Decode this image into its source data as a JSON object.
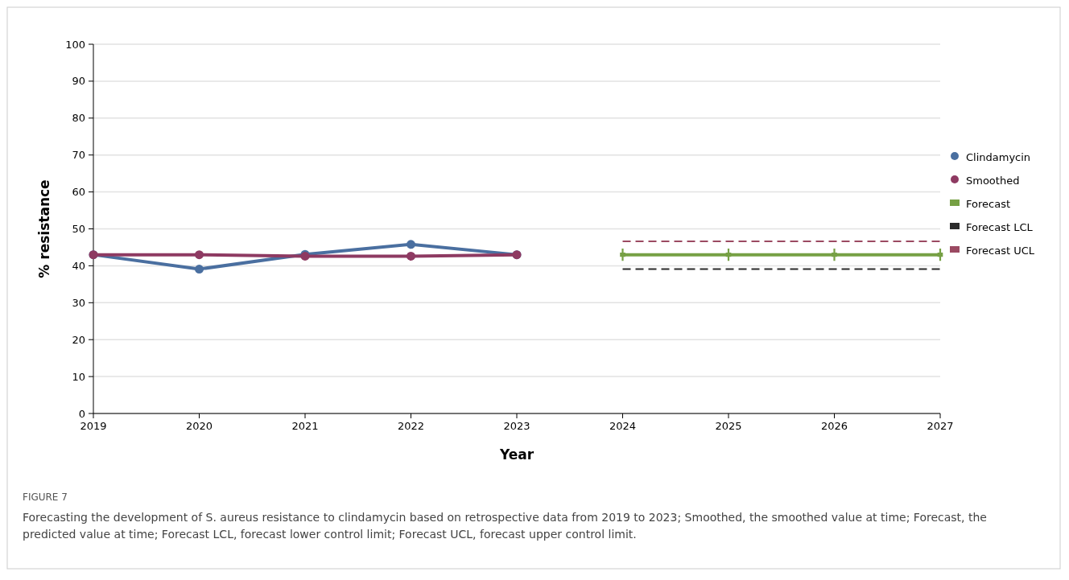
{
  "chart_data": {
    "type": "line",
    "xlabel": "Year",
    "ylabel": "% resistance",
    "x": [
      2019,
      2020,
      2021,
      2022,
      2023
    ],
    "series": [
      {
        "name": "Clindamycin",
        "color": "#4a6fa0",
        "values": [
          43,
          39.1,
          43.1,
          45.8,
          43
        ],
        "marker": "circle"
      },
      {
        "name": "Smoothed",
        "color": "#8e3a62",
        "values": [
          43,
          43,
          42.6,
          42.6,
          43
        ],
        "marker": "circle"
      },
      {
        "name": "Forecast",
        "color": "#76a044",
        "x": [
          2024,
          2025,
          2026,
          2027
        ],
        "values": [
          43,
          43,
          43,
          43
        ],
        "marker": "cross"
      },
      {
        "name": "Forecast LCL",
        "color": "#2b2b2b",
        "x": [
          2024,
          2025,
          2026,
          2027
        ],
        "values": [
          39.1,
          39.1,
          39.1,
          39.1
        ],
        "marker": "none",
        "line_style": "dashed"
      },
      {
        "name": "Forecast UCL",
        "color": "#9b4a62",
        "x": [
          2024,
          2025,
          2026,
          2027
        ],
        "values": [
          46.6,
          46.6,
          46.6,
          46.6
        ],
        "marker": "none",
        "line_style": "dashed"
      }
    ],
    "xlim": [
      2019,
      2027
    ],
    "xticks": [
      2019,
      2020,
      2021,
      2022,
      2023,
      2024,
      2025,
      2026,
      2027
    ],
    "ylim": [
      0,
      100
    ],
    "yticks": [
      0,
      10,
      20,
      30,
      40,
      50,
      60,
      70,
      80,
      90,
      100
    ],
    "grid": "y",
    "legend": "right",
    "annotations": [
      "FIGURE 7",
      "Forecasting the development of S. aureus resistance to clindamycin based on retrospective data from 2019 to 2023; Smoothed, the smoothed value at time; Forecast, the predicted value at time; Forecast LCL, forecast lower control limit; Forecast UCL, forecast upper control limit."
    ]
  }
}
